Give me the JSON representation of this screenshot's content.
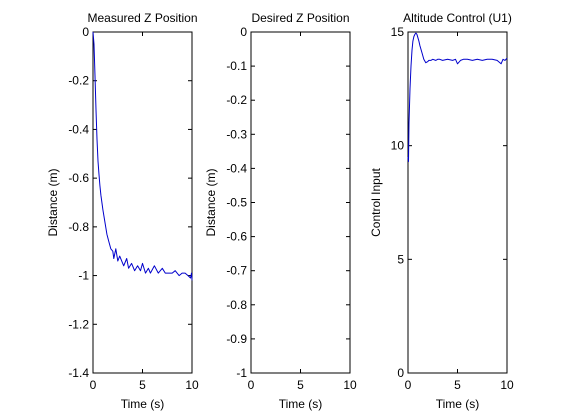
{
  "figure": {
    "background": "#ffffff",
    "line_color": "#0000cc"
  },
  "chart_data": [
    {
      "type": "line",
      "title": "Measured Z Position",
      "xlabel": "Time (s)",
      "ylabel": "Distance (m)",
      "xlim": [
        0,
        10
      ],
      "ylim": [
        -1.4,
        0
      ],
      "xticks": [
        "0",
        "5",
        "10"
      ],
      "yticks": [
        "0",
        "-0.2",
        "-0.4",
        "-0.6",
        "-0.8",
        "-1",
        "-1.2",
        "-1.4"
      ],
      "grid": false,
      "series": [
        {
          "x": [
            0,
            0.1,
            0.2,
            0.3,
            0.4,
            0.5,
            0.6,
            0.7,
            0.8,
            0.9,
            1.0,
            1.2,
            1.4,
            1.6,
            1.8,
            2.0,
            2.1,
            2.3,
            2.5,
            2.7,
            3.0,
            3.1,
            3.4,
            3.6,
            3.9,
            4.2,
            4.5,
            4.8,
            5.0,
            5.3,
            5.6,
            5.8,
            6.2,
            6.6,
            7.0,
            7.3,
            7.6,
            8.0,
            8.3,
            8.7,
            9.0,
            9.3,
            9.6,
            9.85,
            9.95,
            10.0
          ],
          "y": [
            0,
            -0.05,
            -0.18,
            -0.32,
            -0.44,
            -0.53,
            -0.58,
            -0.63,
            -0.67,
            -0.7,
            -0.73,
            -0.78,
            -0.83,
            -0.86,
            -0.89,
            -0.9,
            -0.93,
            -0.89,
            -0.94,
            -0.92,
            -0.95,
            -0.96,
            -0.93,
            -0.97,
            -0.95,
            -0.98,
            -0.96,
            -0.98,
            -0.95,
            -0.99,
            -0.97,
            -0.99,
            -0.96,
            -0.99,
            -0.97,
            -0.99,
            -0.99,
            -0.99,
            -0.98,
            -1.0,
            -0.99,
            -0.99,
            -1.0,
            -1.01,
            -0.99,
            -1.02
          ]
        }
      ]
    },
    {
      "type": "line",
      "title": "Desired Z Position",
      "xlabel": "Time (s)",
      "ylabel": "Distance (m)",
      "xlim": [
        0,
        10
      ],
      "ylim": [
        -1,
        0
      ],
      "xticks": [
        "0",
        "5",
        "10"
      ],
      "yticks": [
        "0",
        "-0.1",
        "-0.2",
        "-0.3",
        "-0.4",
        "-0.5",
        "-0.6",
        "-0.7",
        "-0.8",
        "-0.9",
        "-1"
      ],
      "grid": false,
      "series": []
    },
    {
      "type": "line",
      "title": "Altitude Control (U1)",
      "xlabel": "Time (s)",
      "ylabel": "Control Input",
      "xlim": [
        0,
        10
      ],
      "ylim": [
        0,
        15
      ],
      "xticks": [
        "0",
        "5",
        "10"
      ],
      "yticks": [
        "0",
        "5",
        "10",
        "15"
      ],
      "grid": false,
      "series": [
        {
          "x": [
            0,
            0.05,
            0.1,
            0.2,
            0.3,
            0.4,
            0.5,
            0.6,
            0.7,
            0.8,
            0.9,
            1.0,
            1.1,
            1.2,
            1.4,
            1.6,
            1.8,
            2.0,
            2.1,
            2.3,
            2.5,
            2.8,
            3.0,
            3.2,
            3.5,
            4.0,
            4.5,
            4.8,
            5.0,
            5.3,
            5.6,
            6.0,
            6.5,
            7.0,
            7.5,
            8.0,
            8.5,
            9.0,
            9.4,
            9.6,
            9.8,
            10.0
          ],
          "y": [
            9.5,
            9.3,
            11.0,
            12.5,
            13.5,
            14.2,
            14.6,
            14.8,
            14.9,
            14.95,
            14.9,
            14.75,
            14.6,
            14.4,
            14.1,
            13.8,
            13.65,
            13.7,
            13.75,
            13.75,
            13.8,
            13.75,
            13.8,
            13.8,
            13.75,
            13.8,
            13.75,
            13.8,
            13.6,
            13.75,
            13.8,
            13.8,
            13.75,
            13.8,
            13.75,
            13.8,
            13.8,
            13.75,
            13.6,
            13.8,
            13.75,
            13.85
          ]
        }
      ]
    }
  ]
}
